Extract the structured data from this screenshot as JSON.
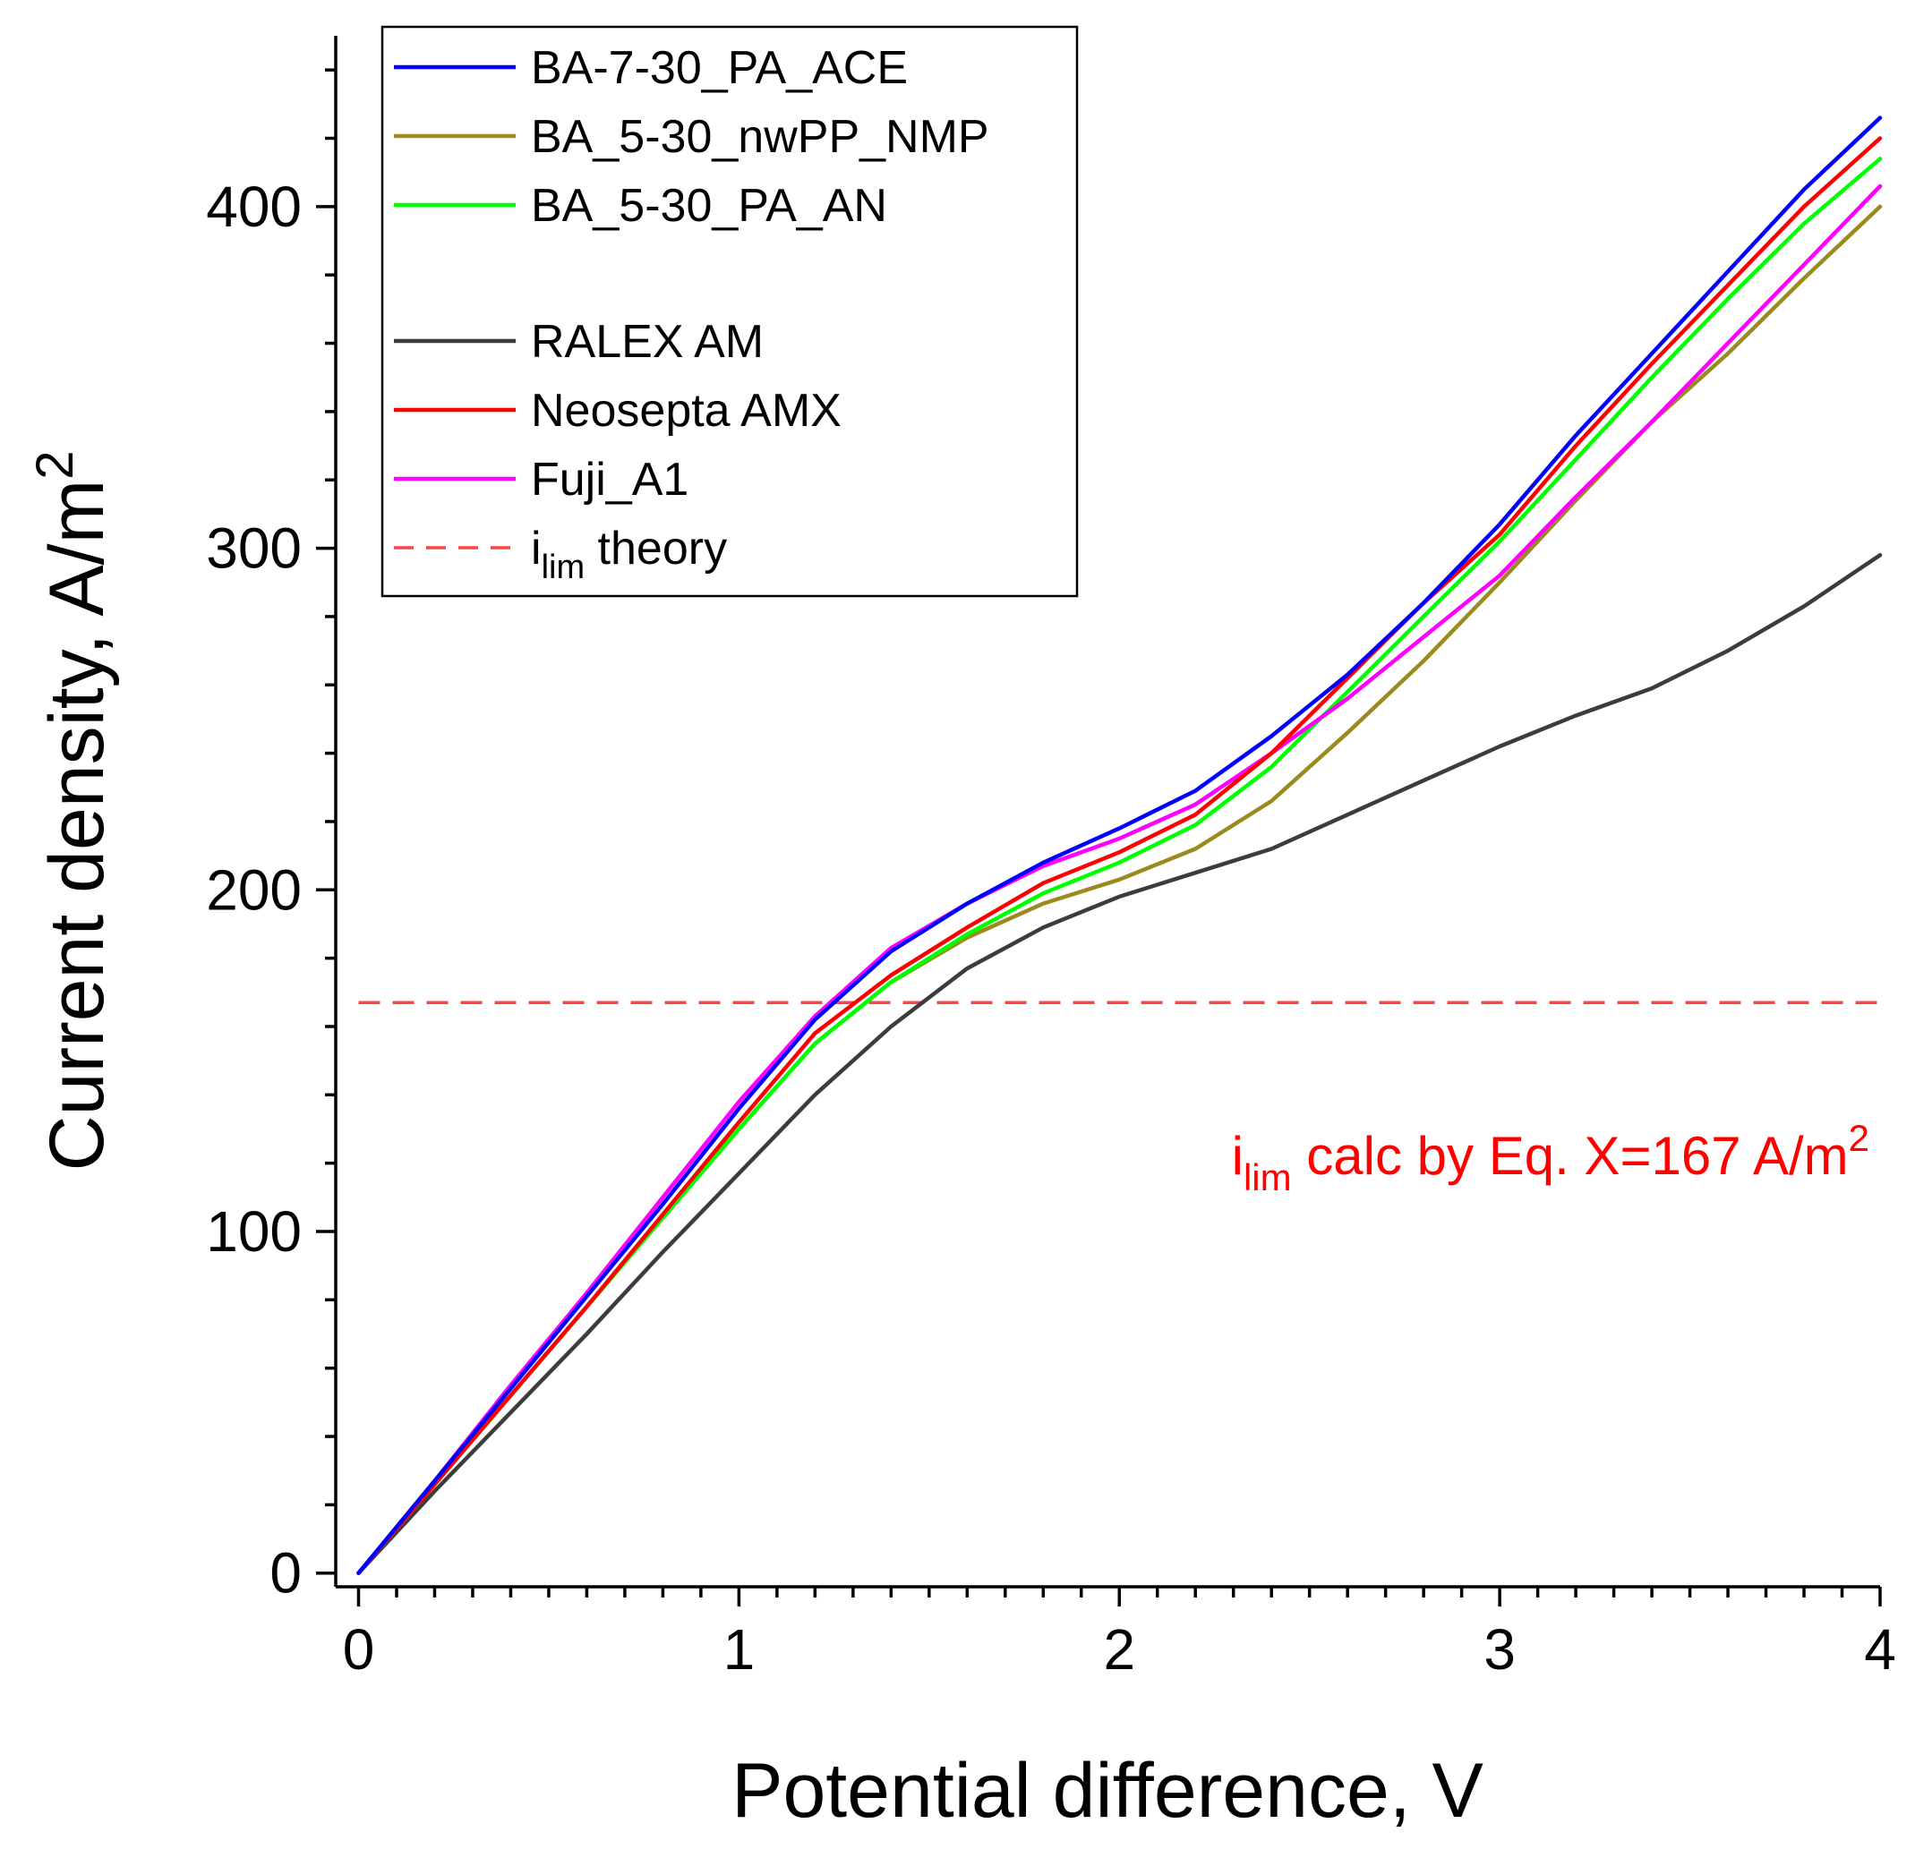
{
  "chart_data": {
    "type": "line",
    "xlabel": "Potential difference, V",
    "ylabel": "Current density, A/m",
    "ylabel_superscript": "2",
    "xlim": [
      -0.06,
      4.0
    ],
    "ylim": [
      -4,
      450
    ],
    "x_ticks": [
      "0",
      "1",
      "2",
      "3",
      "4"
    ],
    "y_ticks": [
      "0",
      "100",
      "200",
      "300",
      "400"
    ],
    "legend_position": "top-left",
    "series": [
      {
        "name": "BA-7-30_PA_ACE",
        "color": "#0000ff",
        "x": [
          0,
          0.2,
          0.4,
          0.6,
          0.8,
          1.0,
          1.2,
          1.4,
          1.6,
          1.8,
          2.0,
          2.2,
          2.4,
          2.6,
          2.8,
          3.0,
          3.2,
          3.4,
          3.6,
          3.8,
          4.0
        ],
        "y": [
          0,
          27,
          54,
          81,
          108,
          136,
          162,
          182,
          196,
          208,
          218,
          229,
          245,
          263,
          284,
          307,
          333,
          357,
          381,
          405,
          426
        ]
      },
      {
        "name": "BA_5-30_nwPP_NMP",
        "color": "#9b8a1e",
        "x": [
          0,
          0.2,
          0.4,
          0.6,
          0.8,
          1.0,
          1.2,
          1.4,
          1.6,
          1.8,
          2.0,
          2.2,
          2.4,
          2.6,
          2.8,
          3.0,
          3.2,
          3.4,
          3.6,
          3.8,
          4.0
        ],
        "y": [
          0,
          26,
          52,
          78,
          104,
          130,
          155,
          173,
          186,
          196,
          203,
          212,
          226,
          246,
          267,
          290,
          314,
          337,
          357,
          379,
          400
        ]
      },
      {
        "name": "BA_5-30_PA_AN",
        "color": "#00ff00",
        "x": [
          0,
          0.2,
          0.4,
          0.6,
          0.8,
          1.0,
          1.2,
          1.4,
          1.6,
          1.8,
          2.0,
          2.2,
          2.4,
          2.6,
          2.8,
          3.0,
          3.2,
          3.4,
          3.6,
          3.8,
          4.0
        ],
        "y": [
          0,
          26,
          52,
          78,
          104,
          130,
          155,
          173,
          187,
          199,
          208,
          219,
          236,
          258,
          280,
          302,
          326,
          350,
          373,
          395,
          414
        ]
      },
      {
        "name": "RALEX AM",
        "color": "#3c3c3c",
        "x": [
          0,
          0.2,
          0.4,
          0.6,
          0.8,
          1.0,
          1.2,
          1.4,
          1.6,
          1.8,
          2.0,
          2.2,
          2.4,
          2.6,
          2.8,
          3.0,
          3.2,
          3.4,
          3.6,
          3.8,
          4.0
        ],
        "y": [
          0,
          24,
          47,
          70,
          94,
          117,
          140,
          160,
          177,
          189,
          198,
          205,
          212,
          222,
          232,
          242,
          251,
          259,
          270,
          283,
          298
        ]
      },
      {
        "name": "Neosepta AMX",
        "color": "#ff0000",
        "x": [
          0,
          0.2,
          0.4,
          0.6,
          0.8,
          1.0,
          1.2,
          1.4,
          1.6,
          1.8,
          2.0,
          2.2,
          2.4,
          2.6,
          2.8,
          3.0,
          3.2,
          3.4,
          3.6,
          3.8,
          4.0
        ],
        "y": [
          0,
          26,
          52,
          78,
          105,
          132,
          158,
          175,
          189,
          202,
          211,
          222,
          240,
          262,
          284,
          304,
          330,
          354,
          377,
          400,
          420
        ]
      },
      {
        "name": "Fuji_A1",
        "color": "#ff00ff",
        "x": [
          0,
          0.2,
          0.4,
          0.6,
          0.8,
          1.0,
          1.2,
          1.4,
          1.6,
          1.8,
          2.0,
          2.2,
          2.4,
          2.6,
          2.8,
          3.0,
          3.2,
          3.4,
          3.6,
          3.8,
          4.0
        ],
        "y": [
          0,
          27,
          55,
          82,
          110,
          138,
          163,
          183,
          196,
          207,
          215,
          225,
          240,
          256,
          274,
          292,
          315,
          337,
          360,
          383,
          406
        ]
      }
    ],
    "reference_line": {
      "name": "i",
      "subscript": "lim",
      "suffix": " theory",
      "color": "#ff4444",
      "y": 167,
      "style": "dashed"
    },
    "annotation": {
      "prefix": "i",
      "subscript": "lim",
      "text": " calc by Eq. X=167 A/m",
      "superscript": "2",
      "color": "#ff0000"
    }
  }
}
